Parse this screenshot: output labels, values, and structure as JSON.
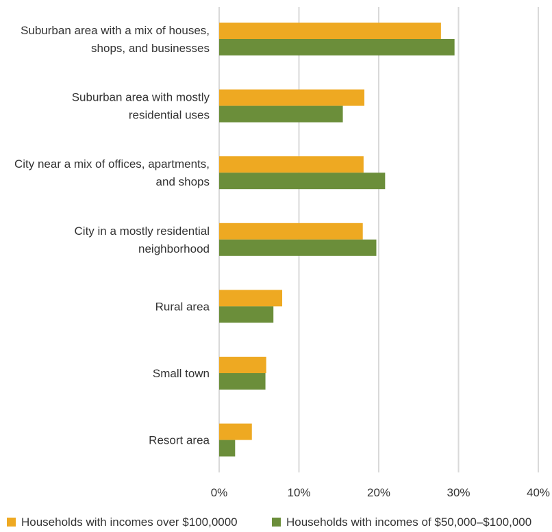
{
  "chart_data": {
    "type": "bar",
    "orientation": "horizontal",
    "categories": [
      [
        "Suburban area with a mix of houses,",
        "shops, and businesses"
      ],
      [
        "Suburban area with mostly",
        "residential uses"
      ],
      [
        "City near a mix of offices, apartments,",
        "and shops"
      ],
      [
        "City in a mostly residential",
        "neighborhood"
      ],
      [
        "Rural area"
      ],
      [
        "Small town"
      ],
      [
        "Resort area"
      ]
    ],
    "series": [
      {
        "name": "Households with incomes over $100,0000",
        "color": "#EEA922",
        "values": [
          27.8,
          18.2,
          18.1,
          18.0,
          7.9,
          5.9,
          4.1
        ]
      },
      {
        "name": "Households with incomes of $50,000–$100,000",
        "color": "#6B8E3A",
        "values": [
          29.5,
          15.5,
          20.8,
          19.7,
          6.8,
          5.8,
          2.0
        ]
      }
    ],
    "xlim": [
      0,
      40
    ],
    "ticks": [
      0,
      10,
      20,
      30,
      40
    ],
    "tick_labels": [
      "0%",
      "10%",
      "20%",
      "30%",
      "40%"
    ],
    "grid": "vertical",
    "legend_position": "bottom"
  }
}
